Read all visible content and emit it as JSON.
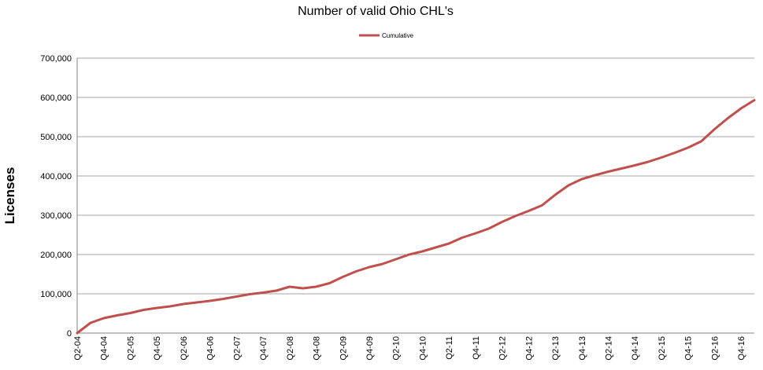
{
  "chart_data": {
    "type": "line",
    "title": "Number of valid Ohio CHL's",
    "xlabel": "",
    "ylabel": "Licenses",
    "ylim": [
      0,
      700000
    ],
    "yticks": [
      0,
      100000,
      200000,
      300000,
      400000,
      500000,
      600000,
      700000
    ],
    "ytick_labels": [
      "0",
      "100,000",
      "200,000",
      "300,000",
      "400,000",
      "500,000",
      "600,000",
      "700,000"
    ],
    "grid": "horizontal",
    "legend_position": "top-center",
    "categories": [
      "Q2-04",
      "Q3-04",
      "Q4-04",
      "Q1-05",
      "Q2-05",
      "Q3-05",
      "Q4-05",
      "Q1-06",
      "Q2-06",
      "Q3-06",
      "Q4-06",
      "Q1-07",
      "Q2-07",
      "Q3-07",
      "Q4-07",
      "Q1-08",
      "Q2-08",
      "Q3-08",
      "Q4-08",
      "Q1-09",
      "Q2-09",
      "Q3-09",
      "Q4-09",
      "Q1-10",
      "Q2-10",
      "Q3-10",
      "Q4-10",
      "Q1-11",
      "Q2-11",
      "Q3-11",
      "Q4-11",
      "Q1-12",
      "Q2-12",
      "Q3-12",
      "Q4-12",
      "Q1-13",
      "Q2-13",
      "Q3-13",
      "Q4-13",
      "Q1-14",
      "Q2-14",
      "Q3-14",
      "Q4-14",
      "Q1-15",
      "Q2-15",
      "Q3-15",
      "Q4-15",
      "Q1-16",
      "Q2-16",
      "Q3-16",
      "Q4-16",
      "Q1-17"
    ],
    "x_tick_labels": [
      "Q2-04",
      "Q4-04",
      "Q2-05",
      "Q4-05",
      "Q2-06",
      "Q4-06",
      "Q2-07",
      "Q4-07",
      "Q2-08",
      "Q4-08",
      "Q2-09",
      "Q4-09",
      "Q2-10",
      "Q4-10",
      "Q2-11",
      "Q4-11",
      "Q2-12",
      "Q4-12",
      "Q2-13",
      "Q4-13",
      "Q2-14",
      "Q4-14",
      "Q2-15",
      "Q4-15",
      "Q2-16",
      "Q4-16"
    ],
    "series": [
      {
        "name": "Cumulative",
        "color": "#c0504d",
        "values": [
          0,
          26000,
          38000,
          45000,
          51000,
          59000,
          64000,
          68000,
          74000,
          78000,
          82000,
          87000,
          93000,
          99000,
          103000,
          108000,
          118000,
          114000,
          118000,
          127000,
          143000,
          157000,
          168000,
          176000,
          188000,
          200000,
          208000,
          218000,
          228000,
          243000,
          254000,
          266000,
          283000,
          298000,
          311000,
          325000,
          352000,
          376000,
          392000,
          402000,
          411000,
          419000,
          427000,
          436000,
          447000,
          459000,
          472000,
          488000,
          519000,
          547000,
          572000,
          593000
        ]
      }
    ]
  }
}
